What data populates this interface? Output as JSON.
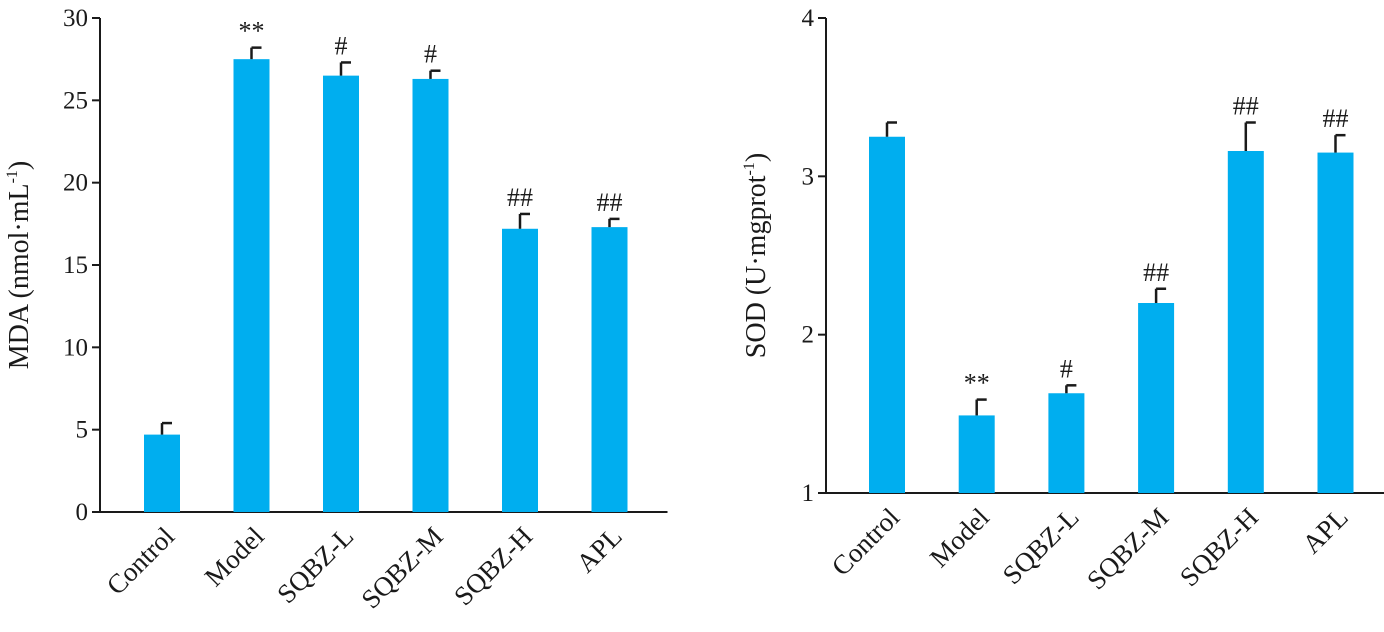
{
  "colors": {
    "bar": "#00AEEF",
    "axis": "#1a1a1a"
  },
  "chart_data": [
    {
      "type": "bar",
      "title": "",
      "xlabel": "",
      "ylabel": {
        "main": "MDA (nmol·mL",
        "sup": "-1",
        "close": ")"
      },
      "ylim": [
        0,
        30
      ],
      "ticks": [
        "0",
        "5",
        "10",
        "15",
        "20",
        "25",
        "30"
      ],
      "categories": [
        "Control",
        "Model",
        "SQBZ-L",
        "SQBZ-M",
        "SQBZ-H",
        "APL"
      ],
      "series": [
        {
          "values": [
            4.7,
            27.5,
            26.5,
            26.3,
            17.2,
            17.3
          ],
          "errors": [
            0.7,
            0.7,
            0.8,
            0.5,
            0.9,
            0.5
          ],
          "significance": [
            "",
            "**",
            "#",
            "#",
            "##",
            "##"
          ]
        }
      ],
      "grid": false
    },
    {
      "type": "bar",
      "title": "",
      "xlabel": "",
      "ylabel": {
        "main": "SOD (U·mgprot",
        "sup": "-1",
        "close": ")"
      },
      "ylim": [
        1,
        4
      ],
      "ticks": [
        "1",
        "2",
        "3",
        "4"
      ],
      "categories": [
        "Control",
        "Model",
        "SQBZ-L",
        "SQBZ-M",
        "SQBZ-H",
        "APL"
      ],
      "series": [
        {
          "values": [
            3.25,
            1.49,
            1.63,
            2.2,
            3.16,
            3.15
          ],
          "errors": [
            0.09,
            0.1,
            0.05,
            0.09,
            0.18,
            0.11
          ],
          "significance": [
            "",
            "**",
            "#",
            "##",
            "##",
            "##"
          ]
        }
      ],
      "grid": false
    }
  ]
}
